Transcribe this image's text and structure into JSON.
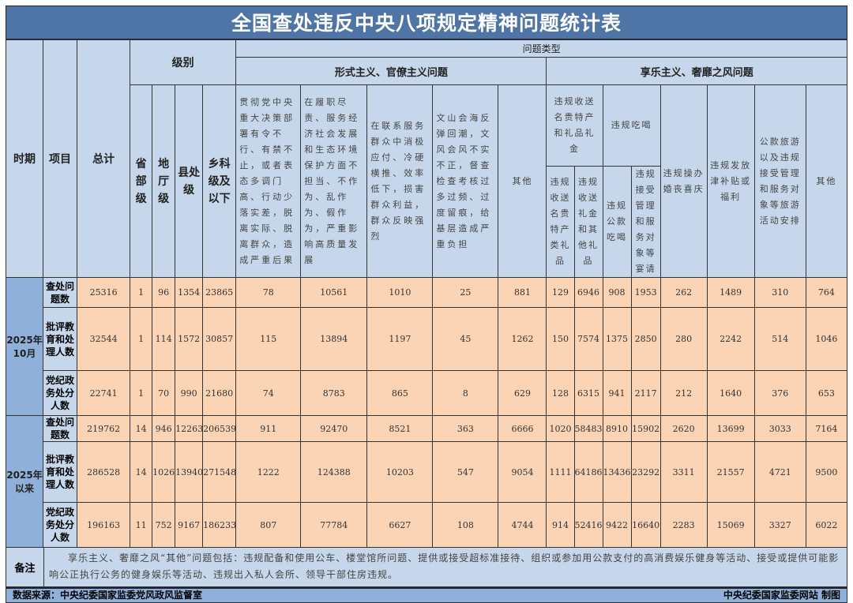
{
  "title": "全国查处违反中央八项规定精神问题统计表",
  "header": {
    "period": "时期",
    "item": "项目",
    "total": "总计",
    "level": "级别",
    "problem_type": "问题类型",
    "formalism": "形式主义、官僚主义问题",
    "hedonism": "享乐主义、奢靡之风问题",
    "levels": [
      "省部级",
      "地厅级",
      "县处级",
      "乡科级及以下"
    ],
    "formalism_cols": [
      "贯彻党中央重大决策部署有令不行、有禁不止，或者表态多调门高、行动少落实差，脱离实际、脱离群众，造成严重后果",
      "在履职尽责、服务经济社会发展和生态环境保护方面不担当、不作为、乱作为、假作为，严重影响高质量发展",
      "在联系服务群众中消极应付、冷硬横推、效率低下，损害群众利益，群众反映强烈",
      "文山会海反弹回潮，文风会风不实不正，督查检查考核过多过频、过度留痕，给基层造成严重负担",
      "其他"
    ],
    "gifts": "违规收送名贵特产和礼品礼金",
    "gifts_sub": [
      "违规收送名贵特产类礼品",
      "违规收送礼金和其他礼品"
    ],
    "dining": "违规吃喝",
    "dining_sub": [
      "违规公款吃喝",
      "违规接受管理和服务对象等宴请"
    ],
    "hedonism_cols": [
      "违规操办婚丧喜庆",
      "违规发放津补贴或福利",
      "公款旅游以及违规接受管理和服务对象等旅游活动安排",
      "其他"
    ]
  },
  "groups": [
    {
      "period": "2025年10月",
      "rows": [
        {
          "item": "查处问题数",
          "values": [
            25316,
            1,
            96,
            1354,
            23865,
            78,
            10561,
            1010,
            25,
            881,
            129,
            6946,
            908,
            1953,
            262,
            1489,
            310,
            764
          ]
        },
        {
          "item": "批评教育和处理人数",
          "values": [
            32544,
            1,
            114,
            1572,
            30857,
            115,
            13894,
            1197,
            45,
            1262,
            150,
            7574,
            1375,
            2850,
            280,
            2242,
            514,
            1046
          ]
        },
        {
          "item": "党纪政务处分人数",
          "values": [
            22741,
            1,
            70,
            990,
            21680,
            74,
            8783,
            865,
            8,
            629,
            128,
            6315,
            941,
            2117,
            212,
            1640,
            376,
            653
          ]
        }
      ]
    },
    {
      "period": "2025年以来",
      "rows": [
        {
          "item": "查处问题数",
          "values": [
            219762,
            14,
            946,
            12263,
            206539,
            911,
            92470,
            8521,
            363,
            6666,
            1020,
            58483,
            8910,
            15902,
            2620,
            13699,
            3033,
            7164
          ]
        },
        {
          "item": "批评教育和处理人数",
          "values": [
            286528,
            14,
            1026,
            13940,
            271548,
            1222,
            124388,
            10203,
            547,
            9054,
            1111,
            64186,
            13436,
            23292,
            3311,
            21557,
            4721,
            9500
          ]
        },
        {
          "item": "党纪政务处分人数",
          "values": [
            196163,
            11,
            752,
            9167,
            186233,
            807,
            77784,
            6627,
            108,
            4744,
            914,
            52416,
            9422,
            16640,
            2283,
            15069,
            3327,
            6022
          ]
        }
      ]
    }
  ],
  "note": {
    "label": "备注",
    "text": "享乐主义、奢靡之风“其他”问题包括：违规配备和使用公车、楼堂馆所问题、提供或接受超标准接待、组织或参加用公款支付的高消费娱乐健身等活动、接受或提供可能影响公正执行公务的健身娱乐等活动、违规出入私人会所、领导干部住房违规。"
  },
  "footer": {
    "source": "数据来源：中央纪委国家监委党风政风监督室",
    "credit": "中央纪委国家监委网站 制图"
  },
  "colors": {
    "header_blue": "#4f74a6",
    "header_light": "#c6d7ec",
    "period_blue": "#8fb0d8",
    "cell_peach": "#fbd4b6"
  }
}
